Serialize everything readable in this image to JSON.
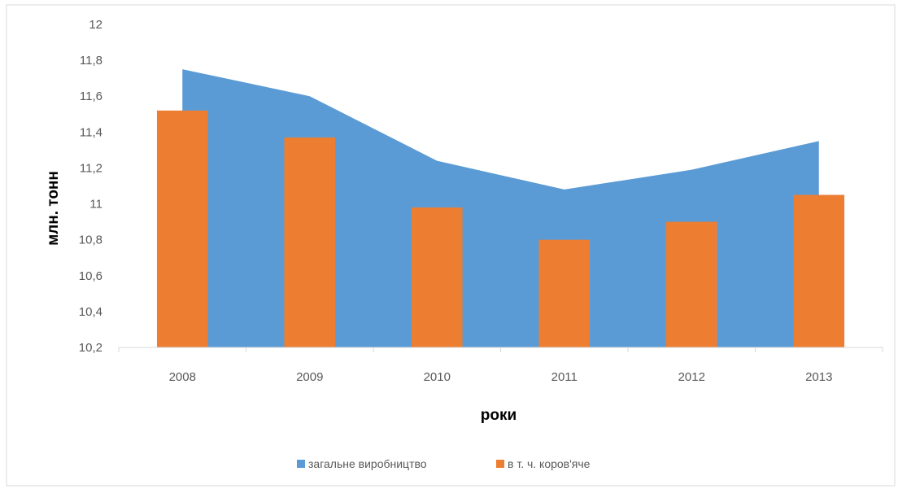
{
  "chart_data": {
    "type": "bar",
    "categories": [
      "2008",
      "2009",
      "2010",
      "2011",
      "2012",
      "2013"
    ],
    "series": [
      {
        "name": "загальне виробництво",
        "type": "area",
        "color": "#5B9BD5",
        "values": [
          11.75,
          11.6,
          11.24,
          11.08,
          11.19,
          11.35
        ]
      },
      {
        "name": "в т. ч. коров'яче",
        "type": "bar",
        "color": "#ED7D31",
        "values": [
          11.52,
          11.37,
          10.98,
          10.8,
          10.9,
          11.05
        ]
      }
    ],
    "xlabel": "роки",
    "ylabel": "млн. тонн",
    "ylim": [
      10.2,
      12
    ],
    "yticks": [
      "10,2",
      "10,4",
      "10,6",
      "10,8",
      "11",
      "11,2",
      "11,4",
      "11,6",
      "11,8",
      "12"
    ],
    "grid": false,
    "legend_position": "bottom"
  }
}
